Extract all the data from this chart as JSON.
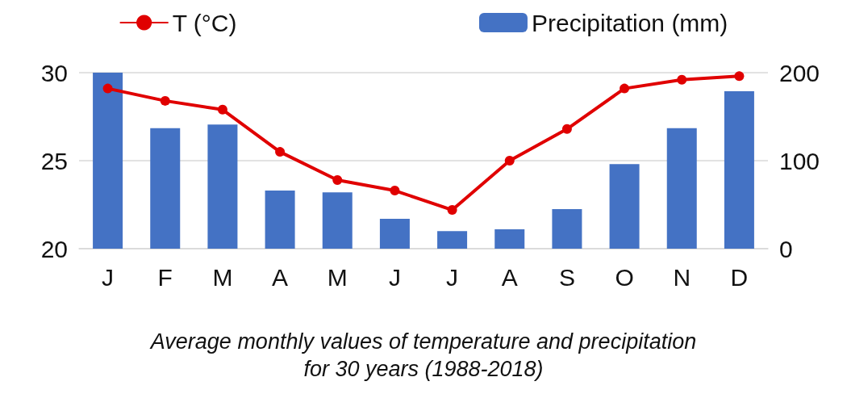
{
  "chart_data": {
    "type": "bar",
    "categories": [
      "J",
      "F",
      "M",
      "A",
      "M",
      "J",
      "J",
      "A",
      "S",
      "O",
      "N",
      "D"
    ],
    "series": [
      {
        "name": "T (°C)",
        "type": "line",
        "color": "#e00000",
        "marker": "circle",
        "values": [
          29.1,
          28.4,
          27.9,
          25.5,
          23.9,
          23.3,
          22.2,
          25.0,
          26.8,
          29.1,
          29.6,
          29.8
        ]
      },
      {
        "name": "Precipitation (mm)",
        "axis": "y2",
        "color": "#4472c4",
        "values": [
          200,
          137,
          141,
          66,
          64,
          34,
          20,
          22,
          45,
          96,
          137,
          179
        ]
      }
    ],
    "ylim": [
      20,
      30
    ],
    "yticks": [
      20,
      25,
      30
    ],
    "y2lim": [
      0,
      200
    ],
    "y2ticks": [
      0,
      100,
      200
    ],
    "grid": "y",
    "legend": "top",
    "annotations": [
      "Average monthly values of temperature and precipitation\nfor 30 years (1988-2018)"
    ]
  }
}
